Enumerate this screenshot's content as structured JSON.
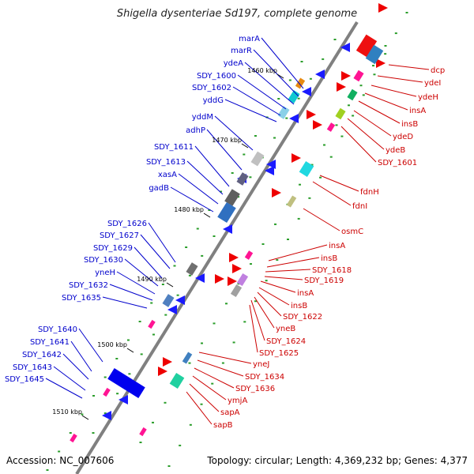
{
  "title": "Shigella dysenteriae Sd197, complete genome",
  "accession": "Accession: NC_007606",
  "topology": "Topology: circular; Length: 4,369,232 bp; Genes: 4,377",
  "colors": {
    "left_label": "#0000cc",
    "right_label": "#cc0000",
    "axis": "#808080"
  },
  "ticks": [
    {
      "label": "1460 kbp"
    },
    {
      "label": "1470 kbp"
    },
    {
      "label": "1480 kbp"
    },
    {
      "label": "1490 kbp"
    },
    {
      "label": "1500 kbp"
    },
    {
      "label": "1510 kbp"
    }
  ],
  "left_genes": [
    "marA",
    "marR",
    "ydeA",
    "SDY_1600",
    "SDY_1602",
    "yddG",
    "yddM",
    "adhP",
    "SDY_1611",
    "SDY_1613",
    "xasA",
    "gadB",
    "SDY_1626",
    "SDY_1627",
    "SDY_1629",
    "SDY_1630",
    "yneH",
    "SDY_1632",
    "SDY_1635",
    "SDY_1640",
    "SDY_1641",
    "SDY_1642",
    "SDY_1643",
    "SDY_1645"
  ],
  "right_genes": [
    "dcp",
    "ydeI",
    "ydeH",
    "insA",
    "insB",
    "ydeD",
    "ydeB",
    "SDY_1601",
    "fdnH",
    "fdnI",
    "osmC",
    "insA",
    "insB",
    "SDY_1618",
    "SDY_1619",
    "insA",
    "insB",
    "SDY_1622",
    "yneB",
    "SDY_1624",
    "SDY_1625",
    "yneJ",
    "SDY_1634",
    "SDY_1636",
    "ymjA",
    "sapA",
    "sapB"
  ]
}
